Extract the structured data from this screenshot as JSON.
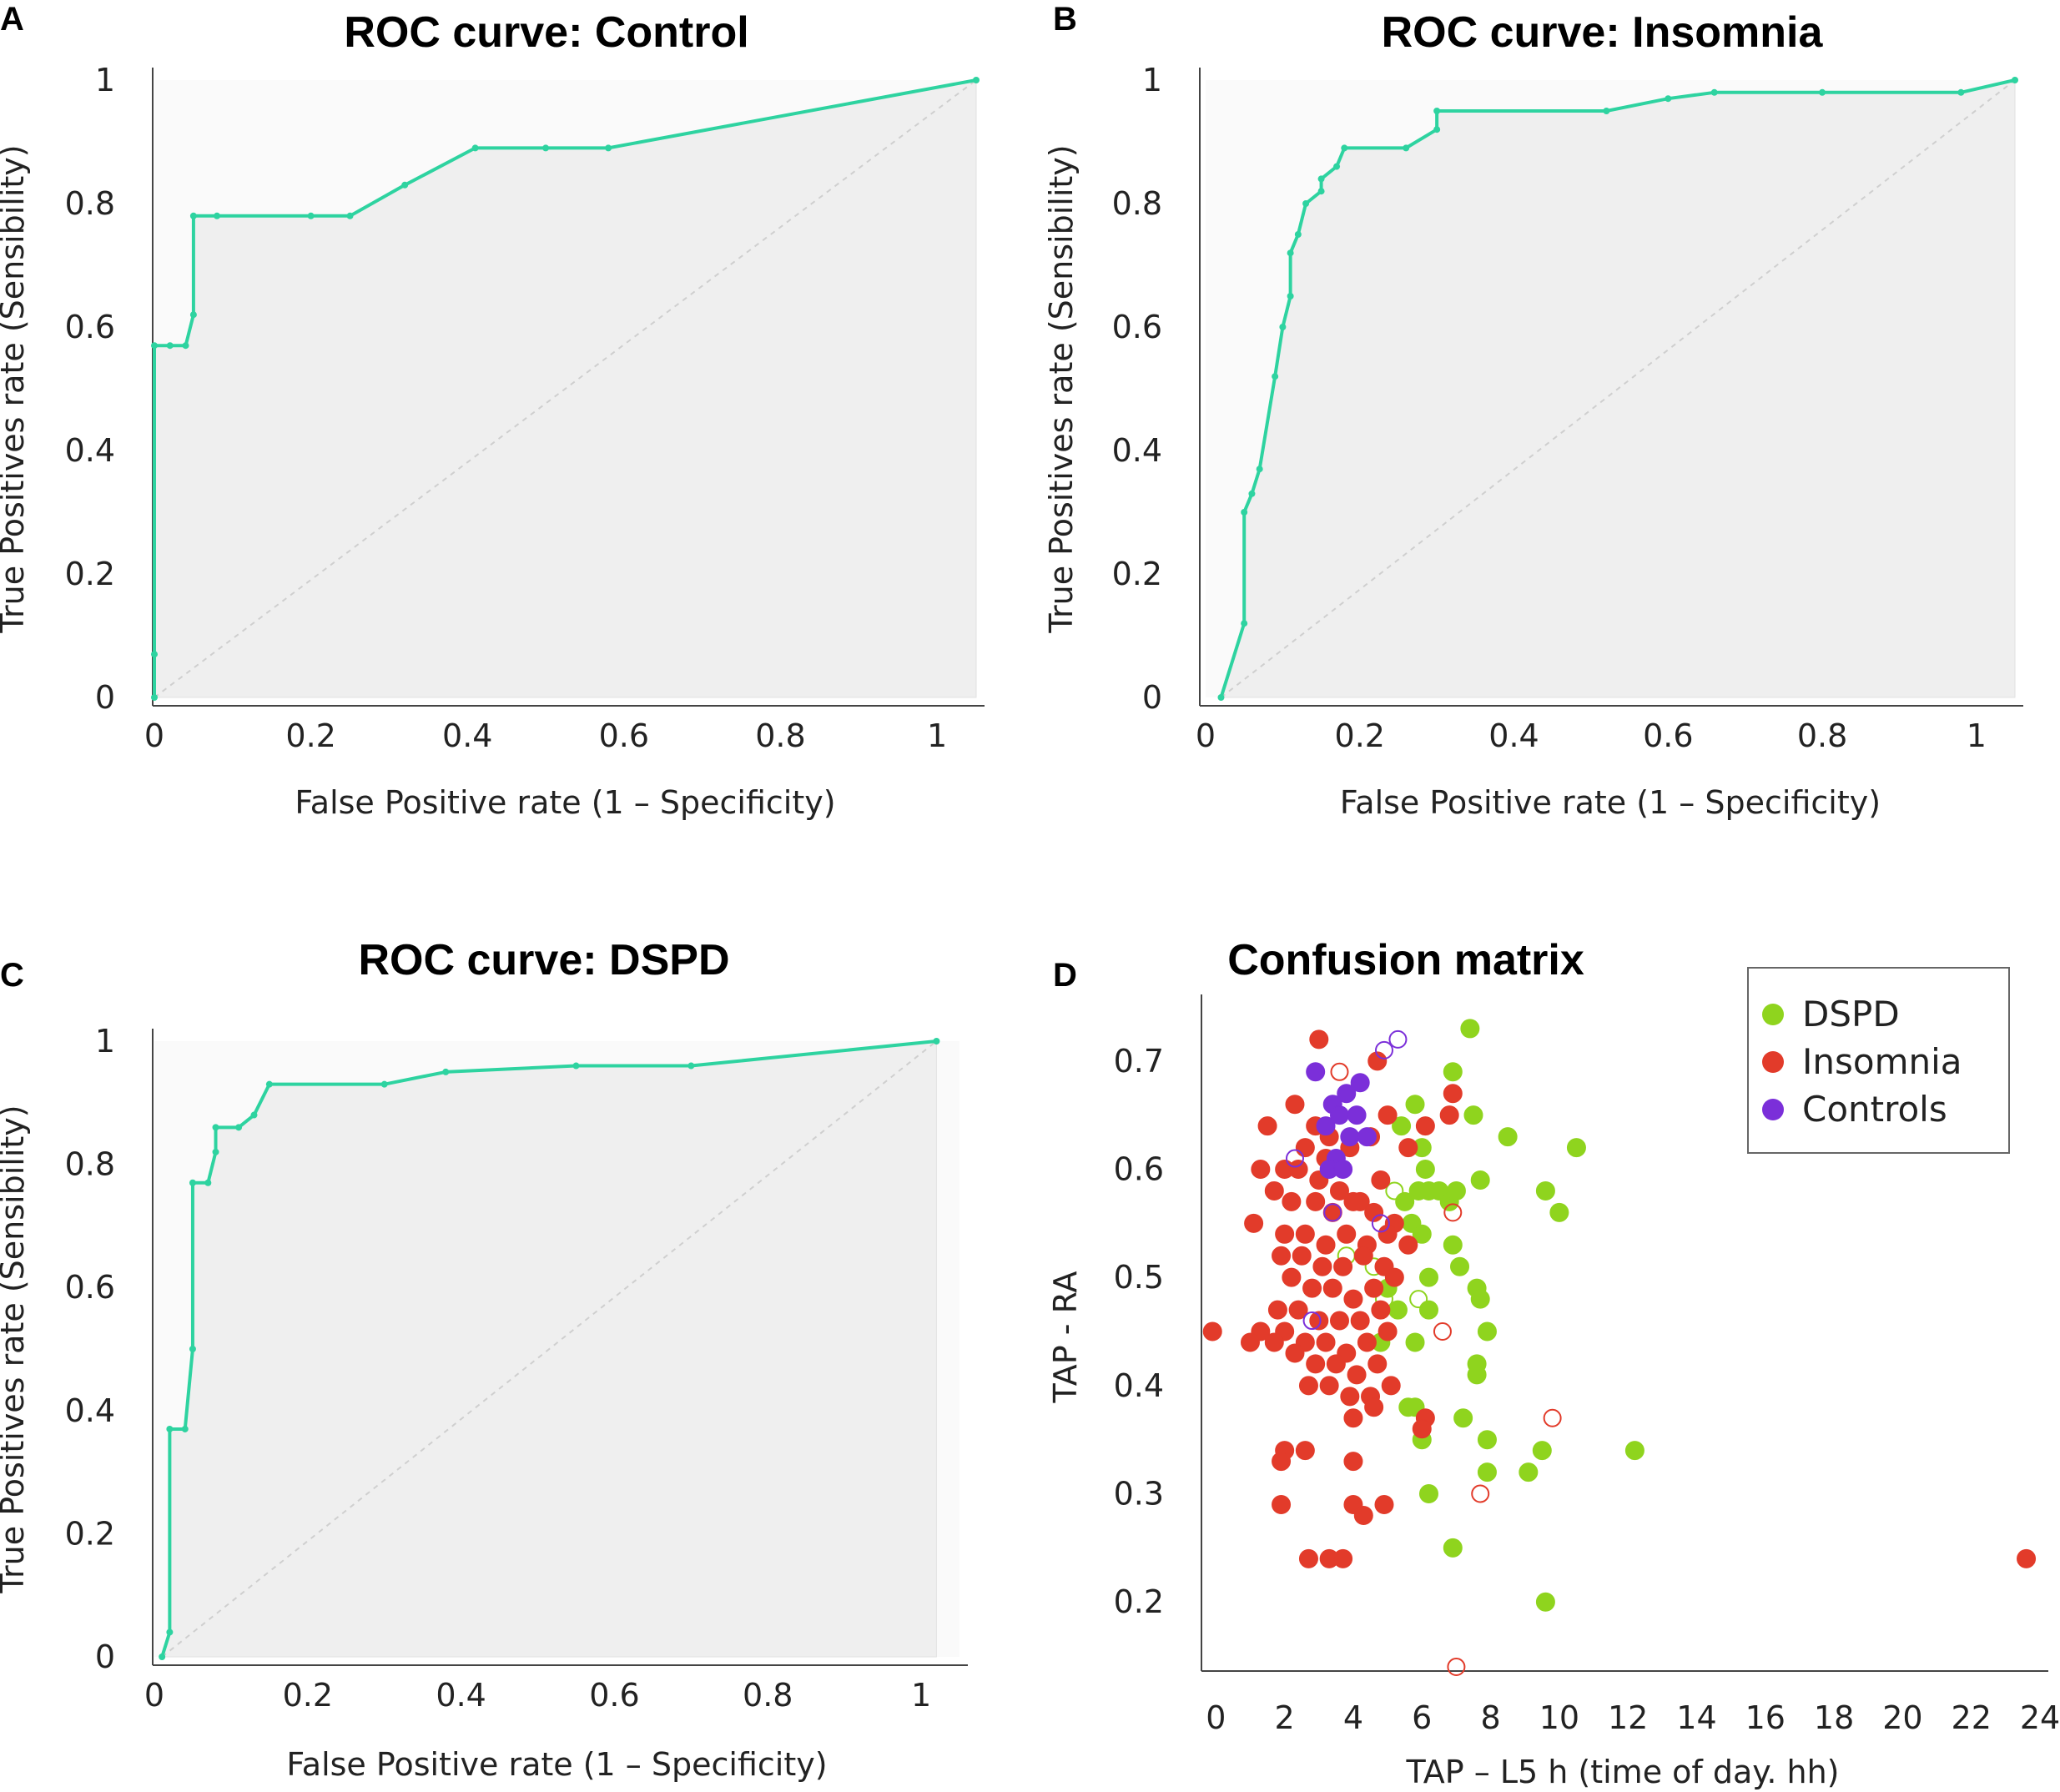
{
  "colors": {
    "roc_line": "#2ed3a0",
    "auc_fill": "#efefef",
    "diagonal": "#cfcfcf",
    "axis": "#444444",
    "dspd": "#8fd41e",
    "insomnia": "#e23b2a",
    "controls": "#7b2fd9"
  },
  "chart_data": [
    {
      "panel": "A",
      "type": "line",
      "title": "ROC curve: Control",
      "xlabel": "False Positive rate (1 – Specificity)",
      "ylabel": "True Positives rate (Sensibility)",
      "xlim": [
        0,
        1.05
      ],
      "ylim": [
        0,
        1
      ],
      "x_ticks": [
        "0",
        "0.2",
        "0.4",
        "0.6",
        "0.8",
        "1"
      ],
      "y_ticks": [
        "0",
        "0.2",
        "0.4",
        "0.6",
        "0.8",
        "1"
      ],
      "diagonal": true,
      "series": [
        {
          "name": "ROC",
          "x": [
            0,
            0,
            0,
            0.02,
            0.04,
            0.05,
            0.05,
            0.08,
            0.2,
            0.25,
            0.32,
            0.41,
            0.5,
            0.58,
            1.05
          ],
          "y": [
            0,
            0.07,
            0.57,
            0.57,
            0.57,
            0.62,
            0.78,
            0.78,
            0.78,
            0.78,
            0.83,
            0.89,
            0.89,
            0.89,
            1
          ]
        }
      ]
    },
    {
      "panel": "B",
      "type": "line",
      "title": "ROC curve: Insomnia",
      "xlabel": "False Positive rate (1 – Specificity)",
      "ylabel": "True Positives rate (Sensibility)",
      "xlim": [
        0,
        1.05
      ],
      "ylim": [
        0,
        1
      ],
      "x_ticks": [
        "0",
        "0.2",
        "0.4",
        "0.6",
        "0.8",
        "1"
      ],
      "y_ticks": [
        "0",
        "0.2",
        "0.4",
        "0.6",
        "0.8",
        "1"
      ],
      "diagonal": true,
      "series": [
        {
          "name": "ROC",
          "x": [
            0.02,
            0.05,
            0.05,
            0.06,
            0.07,
            0.09,
            0.1,
            0.11,
            0.11,
            0.12,
            0.13,
            0.15,
            0.15,
            0.17,
            0.18,
            0.26,
            0.3,
            0.3,
            0.52,
            0.6,
            0.66,
            0.8,
            0.98,
            1.05
          ],
          "y": [
            0,
            0.12,
            0.3,
            0.33,
            0.37,
            0.52,
            0.6,
            0.65,
            0.72,
            0.75,
            0.8,
            0.82,
            0.84,
            0.86,
            0.89,
            0.89,
            0.92,
            0.95,
            0.95,
            0.97,
            0.98,
            0.98,
            0.98,
            1
          ]
        }
      ]
    },
    {
      "panel": "C",
      "type": "line",
      "title": "ROC curve: DSPD",
      "xlabel": "False Positive rate (1 – Specificity)",
      "ylabel": "True Positives rate (Sensibility)",
      "xlim": [
        0,
        1.05
      ],
      "ylim": [
        0,
        1
      ],
      "x_ticks": [
        "0",
        "0.2",
        "0.4",
        "0.6",
        "0.8",
        "1"
      ],
      "y_ticks": [
        "0",
        "0.2",
        "0.4",
        "0.6",
        "0.8",
        "1"
      ],
      "diagonal": true,
      "series": [
        {
          "name": "ROC",
          "x": [
            0.01,
            0.02,
            0.02,
            0.04,
            0.05,
            0.05,
            0.07,
            0.08,
            0.08,
            0.11,
            0.13,
            0.15,
            0.3,
            0.38,
            0.55,
            0.7,
            1.02
          ],
          "y": [
            0,
            0.04,
            0.37,
            0.37,
            0.5,
            0.77,
            0.77,
            0.82,
            0.86,
            0.86,
            0.88,
            0.93,
            0.93,
            0.95,
            0.96,
            0.96,
            1
          ]
        }
      ]
    },
    {
      "panel": "D",
      "type": "scatter",
      "title": "Confusion matrix",
      "xlabel": "TAP – L5 h (time of day. hh)",
      "ylabel": "TAP - RA",
      "xlim": [
        -0.3,
        24
      ],
      "ylim": [
        0.14,
        0.75
      ],
      "x_ticks": [
        "0",
        "2",
        "4",
        "6",
        "8",
        "10",
        "12",
        "14",
        "16",
        "18",
        "20",
        "22",
        "24"
      ],
      "y_ticks": [
        "0.2",
        "0.3",
        "0.4",
        "0.5",
        "0.6",
        "0.7"
      ],
      "legend_position": "top-right",
      "series": [
        {
          "name": "DSPD",
          "filled": [
            [
              7.4,
              0.73
            ],
            [
              6.9,
              0.69
            ],
            [
              7.5,
              0.65
            ],
            [
              8.5,
              0.63
            ],
            [
              10.5,
              0.62
            ],
            [
              5.8,
              0.66
            ],
            [
              5.4,
              0.64
            ],
            [
              6.0,
              0.62
            ],
            [
              6.1,
              0.6
            ],
            [
              5.5,
              0.57
            ],
            [
              5.9,
              0.58
            ],
            [
              6.2,
              0.58
            ],
            [
              6.5,
              0.58
            ],
            [
              6.8,
              0.57
            ],
            [
              7.0,
              0.58
            ],
            [
              7.7,
              0.59
            ],
            [
              9.6,
              0.58
            ],
            [
              10.0,
              0.56
            ],
            [
              5.7,
              0.55
            ],
            [
              6.0,
              0.54
            ],
            [
              6.9,
              0.53
            ],
            [
              7.1,
              0.51
            ],
            [
              6.2,
              0.5
            ],
            [
              7.6,
              0.49
            ],
            [
              7.7,
              0.48
            ],
            [
              5.0,
              0.49
            ],
            [
              5.3,
              0.47
            ],
            [
              6.2,
              0.47
            ],
            [
              7.9,
              0.45
            ],
            [
              4.8,
              0.44
            ],
            [
              5.8,
              0.44
            ],
            [
              7.6,
              0.42
            ],
            [
              7.6,
              0.41
            ],
            [
              5.6,
              0.38
            ],
            [
              5.8,
              0.38
            ],
            [
              7.2,
              0.37
            ],
            [
              6.0,
              0.35
            ],
            [
              7.9,
              0.35
            ],
            [
              9.5,
              0.34
            ],
            [
              12.2,
              0.34
            ],
            [
              9.1,
              0.32
            ],
            [
              7.9,
              0.32
            ],
            [
              6.2,
              0.3
            ],
            [
              6.9,
              0.25
            ],
            [
              9.6,
              0.2
            ]
          ],
          "open": [
            [
              5.2,
              0.58
            ],
            [
              5.9,
              0.48
            ],
            [
              3.8,
              0.52
            ],
            [
              4.6,
              0.51
            ],
            [
              4.9,
              0.48
            ]
          ]
        },
        {
          "name": "Insomnia",
          "filled": [
            [
              3.0,
              0.72
            ],
            [
              4.7,
              0.7
            ],
            [
              1.5,
              0.64
            ],
            [
              2.3,
              0.66
            ],
            [
              2.9,
              0.64
            ],
            [
              3.3,
              0.63
            ],
            [
              2.6,
              0.62
            ],
            [
              2.0,
              0.6
            ],
            [
              3.2,
              0.61
            ],
            [
              3.9,
              0.62
            ],
            [
              4.5,
              0.63
            ],
            [
              5.0,
              0.65
            ],
            [
              5.6,
              0.62
            ],
            [
              6.1,
              0.64
            ],
            [
              6.9,
              0.67
            ],
            [
              6.8,
              0.65
            ],
            [
              1.3,
              0.6
            ],
            [
              2.4,
              0.6
            ],
            [
              3.0,
              0.59
            ],
            [
              3.6,
              0.58
            ],
            [
              4.2,
              0.57
            ],
            [
              4.8,
              0.59
            ],
            [
              1.7,
              0.58
            ],
            [
              2.2,
              0.57
            ],
            [
              2.9,
              0.57
            ],
            [
              3.4,
              0.56
            ],
            [
              4.0,
              0.57
            ],
            [
              4.6,
              0.56
            ],
            [
              5.2,
              0.55
            ],
            [
              1.1,
              0.55
            ],
            [
              2.0,
              0.54
            ],
            [
              2.6,
              0.54
            ],
            [
              3.2,
              0.53
            ],
            [
              3.8,
              0.54
            ],
            [
              4.4,
              0.53
            ],
            [
              5.0,
              0.54
            ],
            [
              1.9,
              0.52
            ],
            [
              2.5,
              0.52
            ],
            [
              3.1,
              0.51
            ],
            [
              3.7,
              0.51
            ],
            [
              4.3,
              0.52
            ],
            [
              4.9,
              0.51
            ],
            [
              5.6,
              0.53
            ],
            [
              2.2,
              0.5
            ],
            [
              2.8,
              0.49
            ],
            [
              3.4,
              0.49
            ],
            [
              4.0,
              0.48
            ],
            [
              4.6,
              0.49
            ],
            [
              5.2,
              0.5
            ],
            [
              1.8,
              0.47
            ],
            [
              2.4,
              0.47
            ],
            [
              3.0,
              0.46
            ],
            [
              3.6,
              0.46
            ],
            [
              4.2,
              0.46
            ],
            [
              4.8,
              0.47
            ],
            [
              1.3,
              0.45
            ],
            [
              2.0,
              0.45
            ],
            [
              2.6,
              0.44
            ],
            [
              3.2,
              0.44
            ],
            [
              3.8,
              0.43
            ],
            [
              4.4,
              0.44
            ],
            [
              5.0,
              0.45
            ],
            [
              -0.1,
              0.45
            ],
            [
              1.0,
              0.44
            ],
            [
              1.7,
              0.44
            ],
            [
              2.3,
              0.43
            ],
            [
              2.9,
              0.42
            ],
            [
              3.5,
              0.42
            ],
            [
              4.1,
              0.41
            ],
            [
              4.7,
              0.42
            ],
            [
              2.7,
              0.4
            ],
            [
              3.3,
              0.4
            ],
            [
              3.9,
              0.39
            ],
            [
              4.5,
              0.39
            ],
            [
              5.1,
              0.4
            ],
            [
              4.0,
              0.37
            ],
            [
              4.6,
              0.38
            ],
            [
              6.1,
              0.37
            ],
            [
              6.0,
              0.36
            ],
            [
              2.0,
              0.34
            ],
            [
              1.9,
              0.33
            ],
            [
              2.6,
              0.34
            ],
            [
              4.0,
              0.33
            ],
            [
              1.9,
              0.29
            ],
            [
              4.0,
              0.29
            ],
            [
              4.9,
              0.29
            ],
            [
              4.3,
              0.28
            ],
            [
              2.7,
              0.24
            ],
            [
              3.3,
              0.24
            ],
            [
              3.7,
              0.24
            ],
            [
              23.6,
              0.24
            ]
          ],
          "open": [
            [
              3.6,
              0.69
            ],
            [
              6.9,
              0.56
            ],
            [
              6.6,
              0.45
            ],
            [
              9.8,
              0.37
            ],
            [
              7.7,
              0.3
            ],
            [
              7.0,
              0.14
            ]
          ]
        },
        {
          "name": "Controls",
          "filled": [
            [
              2.9,
              0.69
            ],
            [
              4.2,
              0.68
            ],
            [
              3.4,
              0.66
            ],
            [
              3.8,
              0.67
            ],
            [
              3.6,
              0.65
            ],
            [
              4.1,
              0.65
            ],
            [
              3.2,
              0.64
            ],
            [
              3.9,
              0.63
            ],
            [
              4.4,
              0.63
            ],
            [
              3.5,
              0.61
            ],
            [
              3.3,
              0.6
            ],
            [
              3.7,
              0.6
            ]
          ],
          "open": [
            [
              4.9,
              0.71
            ],
            [
              5.3,
              0.72
            ],
            [
              2.3,
              0.61
            ],
            [
              3.4,
              0.56
            ],
            [
              4.8,
              0.55
            ],
            [
              2.8,
              0.46
            ]
          ]
        }
      ]
    }
  ]
}
